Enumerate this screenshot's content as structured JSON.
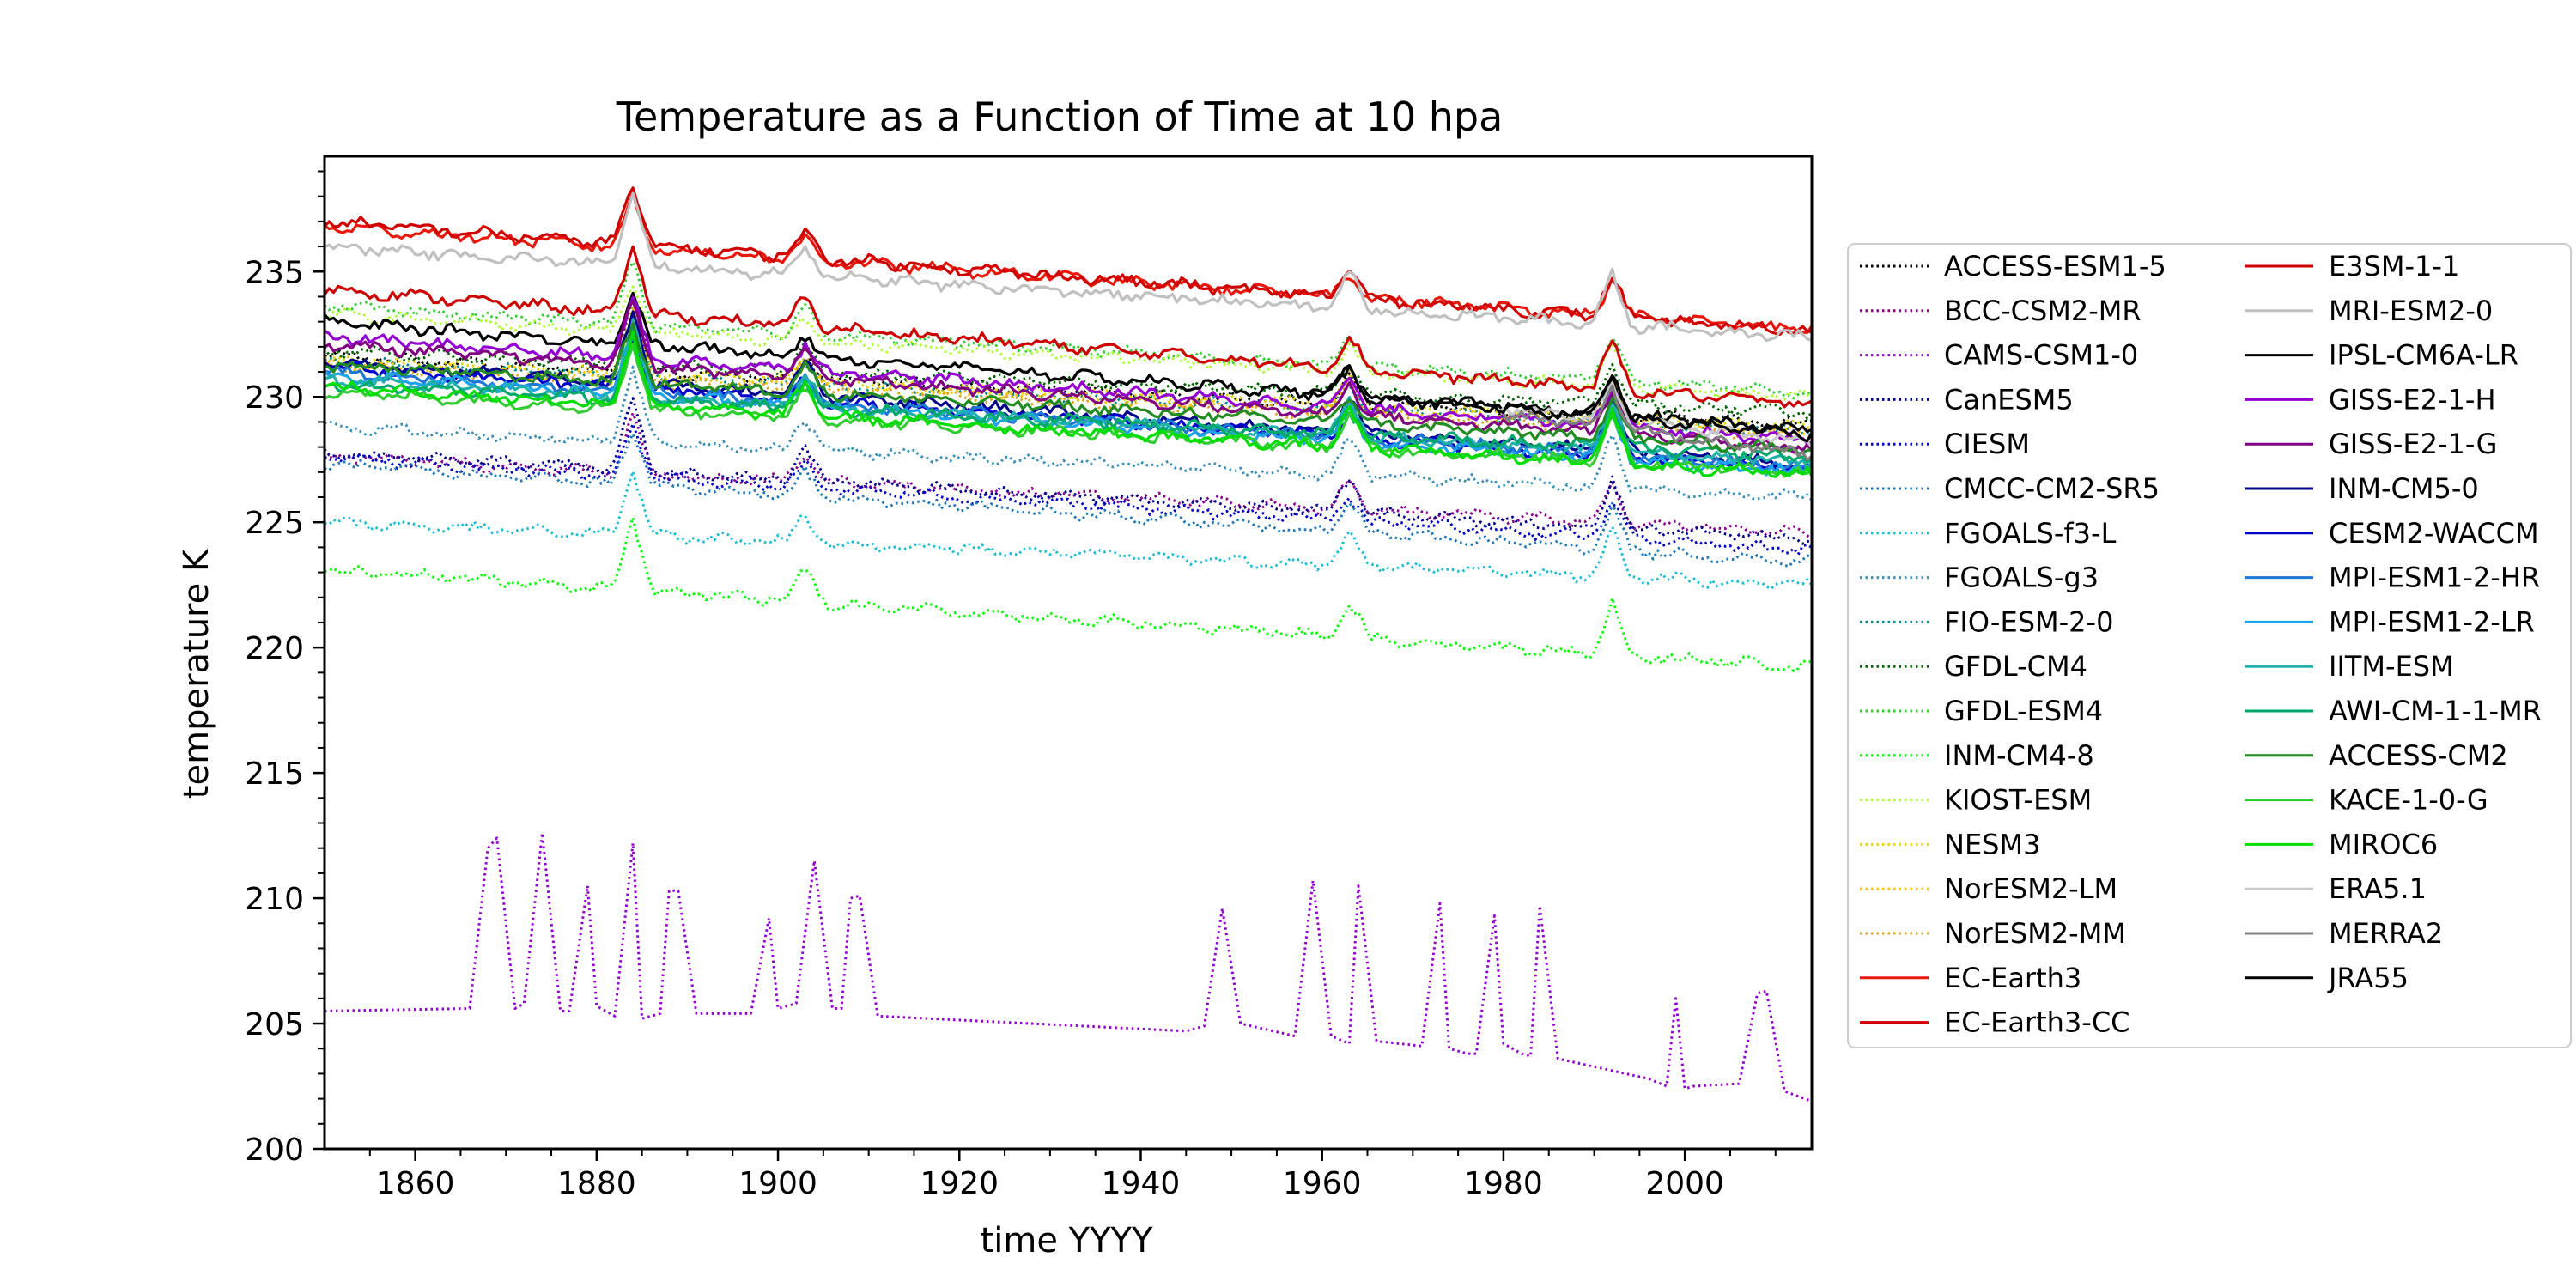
{
  "chart_data": {
    "type": "line",
    "title": "Temperature as a Function of Time at 10 hpa",
    "xlabel": "time YYYY",
    "ylabel": "temperature K",
    "xlim": [
      1850,
      2014
    ],
    "ylim": [
      200,
      239.6
    ],
    "xticks": [
      1860,
      1880,
      1900,
      1920,
      1940,
      1960,
      1980,
      2000
    ],
    "yticks": [
      200,
      205,
      210,
      215,
      220,
      225,
      230,
      235
    ],
    "grid": false,
    "legend_position": "right outside",
    "series": [
      {
        "name": "ACCESS-ESM1-5",
        "color": "#000000",
        "dash": "dotted",
        "x": [
          1850,
          2014
        ],
        "y": [
          231.6,
          228.9
        ]
      },
      {
        "name": "BCC-CSM2-MR",
        "color": "#8b008b",
        "dash": "dotted",
        "x": [
          1850,
          2014
        ],
        "y": [
          227.6,
          224.6
        ]
      },
      {
        "name": "CAMS-CSM1-0",
        "color": "#9400d3",
        "dash": "dotted",
        "x": [
          1850,
          1866,
          1868,
          1869,
          1871,
          1872,
          1874,
          1876,
          1877,
          1879,
          1880,
          1882,
          1884,
          1885,
          1887,
          1888,
          1889,
          1891,
          1897,
          1899,
          1900,
          1902,
          1904,
          1906,
          1907,
          1908,
          1909,
          1911,
          1945,
          1947,
          1949,
          1951,
          1957,
          1959,
          1961,
          1963,
          1964,
          1966,
          1971,
          1973,
          1974,
          1976,
          1977,
          1979,
          1980,
          1982,
          1983,
          1984,
          1986,
          1996,
          1998,
          1999,
          2000,
          2001,
          2006,
          2008,
          2009,
          2011,
          2014
        ],
        "y": [
          205.5,
          205.6,
          212.0,
          212.4,
          205.6,
          205.8,
          212.6,
          205.5,
          205.5,
          210.5,
          205.7,
          205.3,
          212.2,
          205.2,
          205.4,
          210.3,
          210.3,
          205.4,
          205.4,
          209.2,
          205.6,
          205.8,
          211.5,
          205.6,
          205.6,
          210.0,
          210.1,
          205.3,
          204.7,
          204.9,
          209.6,
          205.0,
          204.5,
          210.7,
          204.5,
          204.2,
          210.5,
          204.3,
          204.1,
          209.8,
          204.0,
          203.8,
          203.8,
          209.3,
          204.2,
          203.8,
          203.7,
          209.7,
          203.6,
          202.8,
          202.5,
          206.0,
          202.4,
          202.5,
          202.6,
          206.2,
          206.3,
          202.3,
          201.9
        ]
      },
      {
        "name": "CanESM5",
        "color": "#00008b",
        "dash": "dotted",
        "x": [
          1850,
          2014
        ],
        "y": [
          227.8,
          224.3
        ]
      },
      {
        "name": "CIESM",
        "color": "#0000cd",
        "dash": "dotted",
        "x": [
          1850,
          2014
        ],
        "y": [
          227.6,
          223.9
        ]
      },
      {
        "name": "CMCC-CM2-SR5",
        "color": "#1f77b4",
        "dash": "dotted",
        "x": [
          1850,
          2014
        ],
        "y": [
          227.3,
          223.4
        ]
      },
      {
        "name": "FGOALS-f3-L",
        "color": "#17becf",
        "dash": "dotted",
        "x": [
          1850,
          2014
        ],
        "y": [
          225.0,
          222.5
        ]
      },
      {
        "name": "FGOALS-g3",
        "color": "#3a8fb7",
        "dash": "dotted",
        "x": [
          1850,
          2014
        ],
        "y": [
          228.8,
          226.0
        ]
      },
      {
        "name": "FIO-ESM-2-0",
        "color": "#008b8b",
        "dash": "dotted",
        "x": [
          1850,
          2014
        ],
        "y": [
          231.4,
          228.6
        ]
      },
      {
        "name": "GFDL-CM4",
        "color": "#006400",
        "dash": "dotted",
        "x": [
          1850,
          2014
        ],
        "y": [
          231.8,
          229.4
        ]
      },
      {
        "name": "GFDL-ESM4",
        "color": "#32cd32",
        "dash": "dotted",
        "x": [
          1850,
          2014
        ],
        "y": [
          233.6,
          230.2
        ]
      },
      {
        "name": "INM-CM4-8",
        "color": "#00ff00",
        "dash": "dotted",
        "x": [
          1850,
          2014
        ],
        "y": [
          223.1,
          219.2
        ]
      },
      {
        "name": "KIOST-ESM",
        "color": "#adff2f",
        "dash": "dotted",
        "x": [
          1850,
          2014
        ],
        "y": [
          233.3,
          230.0
        ]
      },
      {
        "name": "NESM3",
        "color": "#e6d400",
        "dash": "dotted",
        "x": [
          1850,
          2014
        ],
        "y": [
          231.5,
          228.8
        ]
      },
      {
        "name": "NorESM2-LM",
        "color": "#ffc000",
        "dash": "dotted",
        "x": [
          1850,
          2014
        ],
        "y": [
          231.3,
          228.6
        ]
      },
      {
        "name": "NorESM2-MM",
        "color": "#daa520",
        "dash": "dotted",
        "x": [
          1850,
          2014
        ],
        "y": [
          231.2,
          228.4
        ]
      },
      {
        "name": "EC-Earth3",
        "color": "#e8190c",
        "dash": "solid",
        "x": [
          1850,
          2014
        ],
        "y": [
          236.8,
          232.7
        ]
      },
      {
        "name": "EC-Earth3-CC",
        "color": "#d00000",
        "dash": "solid",
        "x": [
          1850,
          2014
        ],
        "y": [
          237.0,
          232.6
        ]
      },
      {
        "name": "E3SM-1-1",
        "color": "#cc0000",
        "dash": "solid",
        "x": [
          1850,
          2014
        ],
        "y": [
          234.3,
          229.7
        ]
      },
      {
        "name": "MRI-ESM2-0",
        "color": "#c0c0c0",
        "dash": "solid",
        "x": [
          1850,
          2014
        ],
        "y": [
          236.0,
          232.4
        ]
      },
      {
        "name": "IPSL-CM6A-LR",
        "color": "#000000",
        "dash": "solid",
        "x": [
          1850,
          2014
        ],
        "y": [
          233.0,
          228.7
        ]
      },
      {
        "name": "GISS-E2-1-H",
        "color": "#9400d3",
        "dash": "solid",
        "x": [
          1850,
          2014
        ],
        "y": [
          232.4,
          228.3
        ]
      },
      {
        "name": "GISS-E2-1-G",
        "color": "#800080",
        "dash": "solid",
        "x": [
          1850,
          2014
        ],
        "y": [
          232.1,
          228.0
        ]
      },
      {
        "name": "INM-CM5-0",
        "color": "#00008b",
        "dash": "solid",
        "x": [
          1850,
          2014
        ],
        "y": [
          231.4,
          227.3
        ]
      },
      {
        "name": "CESM2-WACCM",
        "color": "#0000cd",
        "dash": "solid",
        "x": [
          1850,
          2014
        ],
        "y": [
          231.2,
          227.1
        ]
      },
      {
        "name": "MPI-ESM1-2-HR",
        "color": "#1f77d4",
        "dash": "solid",
        "x": [
          1850,
          2014
        ],
        "y": [
          231.0,
          227.2
        ]
      },
      {
        "name": "MPI-ESM1-2-LR",
        "color": "#1ca3ec",
        "dash": "solid",
        "x": [
          1850,
          2014
        ],
        "y": [
          230.9,
          227.0
        ]
      },
      {
        "name": "IITM-ESM",
        "color": "#20b2aa",
        "dash": "solid",
        "x": [
          1850,
          2014
        ],
        "y": [
          230.7,
          227.4
        ]
      },
      {
        "name": "AWI-CM-1-1-MR",
        "color": "#00a86b",
        "dash": "solid",
        "x": [
          1850,
          2014
        ],
        "y": [
          230.5,
          227.6
        ]
      },
      {
        "name": "ACCESS-CM2",
        "color": "#228b22",
        "dash": "solid",
        "x": [
          1850,
          2014
        ],
        "y": [
          231.3,
          227.9
        ]
      },
      {
        "name": "KACE-1-0-G",
        "color": "#32cd32",
        "dash": "solid",
        "x": [
          1850,
          2014
        ],
        "y": [
          230.2,
          227.0
        ]
      },
      {
        "name": "MIROC6",
        "color": "#00dd00",
        "dash": "solid",
        "x": [
          1850,
          2014
        ],
        "y": [
          230.4,
          226.9
        ]
      },
      {
        "name": "ERA5.1",
        "color": "#c8c8c8",
        "dash": "solid",
        "x": [
          1979,
          2014
        ],
        "y": [
          229.6,
          228.2
        ]
      },
      {
        "name": "MERRA2",
        "color": "#808080",
        "dash": "solid",
        "x": [
          1980,
          2014
        ],
        "y": [
          229.3,
          227.7
        ]
      },
      {
        "name": "JRA55",
        "color": "#000000",
        "dash": "solid",
        "x": [
          1958,
          2014
        ],
        "y": [
          230.2,
          228.5
        ]
      }
    ]
  }
}
